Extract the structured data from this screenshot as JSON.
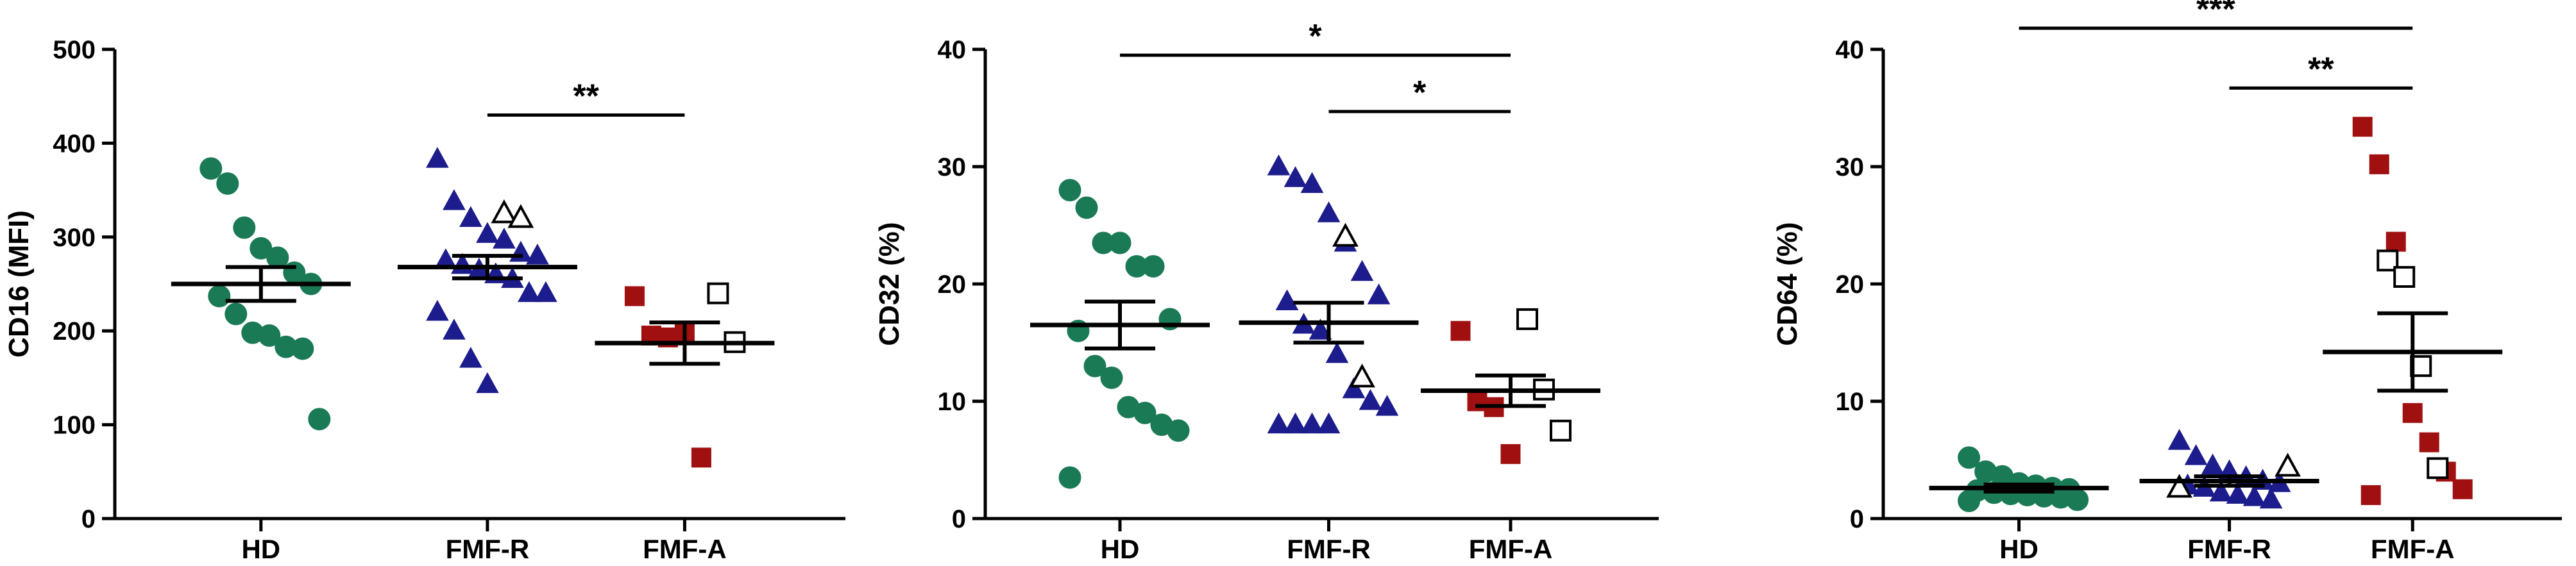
{
  "chart_data": [
    {
      "type": "dotplot",
      "ylabel": "CD16 (MFI)",
      "categories": [
        "HD",
        "FMF-R",
        "FMF-A"
      ],
      "ylim": [
        0,
        500
      ],
      "yticks": [
        0,
        100,
        200,
        300,
        400,
        500
      ],
      "groups": [
        {
          "mean": 250,
          "sem": 18,
          "sets": [
            {
              "marker": "circle",
              "color": "#1a7a55",
              "filled": true,
              "values": [
                373,
                357,
                310,
                288,
                278,
                262,
                250,
                237,
                218,
                198,
                195,
                183,
                181,
                106
              ]
            }
          ]
        },
        {
          "mean": 268,
          "sem": 12,
          "sets": [
            {
              "marker": "triangle",
              "color": "#1c1c8c",
              "filled": true,
              "values": [
                383,
                338,
                320,
                303,
                297,
                283,
                280,
                275,
                270,
                265,
                260,
                255,
                240,
                240,
                220,
                200,
                170,
                143
              ]
            },
            {
              "marker": "triangle",
              "color": "#000000",
              "filled": false,
              "values": [
                325,
                320
              ]
            }
          ]
        },
        {
          "mean": 187,
          "sem": 22,
          "sets": [
            {
              "marker": "square",
              "color": "#a01010",
              "filled": true,
              "values": [
                237,
                195,
                193,
                197,
                65
              ]
            },
            {
              "marker": "square",
              "color": "#000000",
              "filled": false,
              "values": [
                240,
                188
              ]
            }
          ]
        }
      ],
      "brackets": [
        {
          "label": "**",
          "from": 1,
          "to": 2,
          "y": 430
        }
      ]
    },
    {
      "type": "dotplot",
      "ylabel": "CD32 (%)",
      "categories": [
        "HD",
        "FMF-R",
        "FMF-A"
      ],
      "ylim": [
        0,
        40
      ],
      "yticks": [
        0,
        10,
        20,
        30,
        40
      ],
      "groups": [
        {
          "mean": 16.5,
          "sem": 2,
          "sets": [
            {
              "marker": "circle",
              "color": "#1a7a55",
              "filled": true,
              "values": [
                28,
                26.5,
                23.5,
                23.5,
                21.5,
                21.5,
                17,
                16,
                13,
                12,
                9.5,
                9,
                8,
                7.5,
                3.5
              ]
            }
          ]
        },
        {
          "mean": 16.7,
          "sem": 1.7,
          "sets": [
            {
              "marker": "triangle",
              "color": "#1c1c8c",
              "filled": true,
              "values": [
                30,
                29,
                28.5,
                26,
                23.5,
                21,
                19,
                18.5,
                16.5,
                16,
                14,
                11,
                10,
                9.5,
                8,
                8,
                8,
                8
              ]
            },
            {
              "marker": "triangle",
              "color": "#000000",
              "filled": false,
              "values": [
                24,
                12
              ]
            }
          ]
        },
        {
          "mean": 10.9,
          "sem": 1.3,
          "sets": [
            {
              "marker": "square",
              "color": "#a01010",
              "filled": true,
              "values": [
                16,
                10,
                9.5,
                5.5
              ]
            },
            {
              "marker": "square",
              "color": "#000000",
              "filled": false,
              "values": [
                17,
                11,
                7.5
              ]
            }
          ]
        }
      ],
      "brackets": [
        {
          "label": "*",
          "from": 0,
          "to": 2,
          "y": 39.5
        },
        {
          "label": "*",
          "from": 1,
          "to": 2,
          "y": 34.7
        }
      ]
    },
    {
      "type": "dotplot",
      "ylabel": "CD64 (%)",
      "categories": [
        "HD",
        "FMF-R",
        "FMF-A"
      ],
      "ylim": [
        0,
        40
      ],
      "yticks": [
        0,
        10,
        20,
        30,
        40
      ],
      "groups": [
        {
          "mean": 2.6,
          "sem": 0.3,
          "sets": [
            {
              "marker": "circle",
              "color": "#1a7a55",
              "filled": true,
              "values": [
                5.2,
                4,
                3.6,
                3,
                2.8,
                2.6,
                2.5,
                2.4,
                2.2,
                2.1,
                2,
                1.9,
                1.8,
                1.6,
                1.5
              ]
            }
          ]
        },
        {
          "mean": 3.2,
          "sem": 0.4,
          "sets": [
            {
              "marker": "triangle",
              "color": "#1c1c8c",
              "filled": true,
              "values": [
                6.6,
                5.3,
                4.5,
                4,
                3.5,
                3.2,
                3,
                2.8,
                2.6,
                2.2,
                2,
                1.8,
                1.6
              ]
            },
            {
              "marker": "triangle",
              "color": "#000000",
              "filled": false,
              "values": [
                4.4,
                2.6
              ]
            }
          ]
        },
        {
          "mean": 14.2,
          "sem": 3.3,
          "sets": [
            {
              "marker": "square",
              "color": "#a01010",
              "filled": true,
              "values": [
                33.4,
                30.2,
                23.6,
                9,
                6.5,
                4,
                2.5,
                2
              ]
            },
            {
              "marker": "square",
              "color": "#000000",
              "filled": false,
              "values": [
                22,
                20.6,
                13,
                4.3
              ]
            }
          ]
        }
      ],
      "brackets": [
        {
          "label": "***",
          "from": 0,
          "to": 2,
          "y": 41.8
        },
        {
          "label": "**",
          "from": 1,
          "to": 2,
          "y": 36.7
        }
      ]
    }
  ]
}
